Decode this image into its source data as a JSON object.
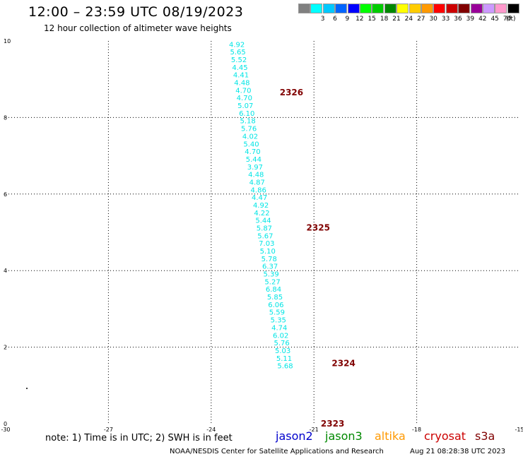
{
  "header": {
    "title": "12:00 – 23:59 UTC 08/19/2023",
    "subtitle": "12 hour collection of altimeter wave heights"
  },
  "color_scale": {
    "unit": "(ft)",
    "entries": [
      {
        "label": "",
        "color": "#808080"
      },
      {
        "label": "3",
        "color": "#00ffff"
      },
      {
        "label": "6",
        "color": "#00c8ff"
      },
      {
        "label": "9",
        "color": "#0064ff"
      },
      {
        "label": "12",
        "color": "#0000ff"
      },
      {
        "label": "15",
        "color": "#00ff00"
      },
      {
        "label": "18",
        "color": "#00cc00"
      },
      {
        "label": "21",
        "color": "#008800"
      },
      {
        "label": "24",
        "color": "#ffff00"
      },
      {
        "label": "27",
        "color": "#ffcc00"
      },
      {
        "label": "30",
        "color": "#ff9900"
      },
      {
        "label": "33",
        "color": "#ff0000"
      },
      {
        "label": "36",
        "color": "#cc0000"
      },
      {
        "label": "39",
        "color": "#800000"
      },
      {
        "label": "42",
        "color": "#990099"
      },
      {
        "label": "45",
        "color": "#cc99ff"
      },
      {
        "label": "70",
        "color": "#ff99cc"
      },
      {
        "label": "",
        "color": "#000000"
      }
    ]
  },
  "footer": {
    "note": "note:  1) Time is in UTC;  2) SWH is in feet",
    "satellites": [
      {
        "name": "jason2",
        "color": "#0000cc"
      },
      {
        "name": "jason3",
        "color": "#008800"
      },
      {
        "name": "altika",
        "color": "#ff9900"
      },
      {
        "name": "cryosat",
        "color": "#cc0000"
      },
      {
        "name": "s3a",
        "color": "#800000"
      }
    ],
    "credit": "NOAA/NESDIS Center for Satellite Applications and Research",
    "timestamp": "Aug 21 08:28:38 UTC 2023"
  },
  "chart_data": {
    "type": "scatter",
    "title": "12:00 – 23:59 UTC 08/19/2023",
    "subtitle": "12 hour collection of altimeter wave heights",
    "xlabel": "",
    "ylabel": "",
    "xlim": [
      -30,
      -15
    ],
    "ylim": [
      0,
      10
    ],
    "x_ticks": [
      "-30",
      "-27",
      "-24",
      "-21",
      "-18",
      "-15"
    ],
    "y_ticks": [
      "0",
      "2",
      "4",
      "6",
      "8",
      "10"
    ],
    "grid": true,
    "color_hint": "#00e5e5",
    "points": [
      {
        "x": -23.25,
        "y": 9.92,
        "swh": "4.92"
      },
      {
        "x": -23.22,
        "y": 9.72,
        "swh": "5.65"
      },
      {
        "x": -23.19,
        "y": 9.52,
        "swh": "5.52"
      },
      {
        "x": -23.16,
        "y": 9.32,
        "swh": "4.45"
      },
      {
        "x": -23.13,
        "y": 9.12,
        "swh": "4.41"
      },
      {
        "x": -23.1,
        "y": 8.92,
        "swh": "4.48"
      },
      {
        "x": -23.06,
        "y": 8.72,
        "swh": "4.70"
      },
      {
        "x": -23.03,
        "y": 8.52,
        "swh": "4.70"
      },
      {
        "x": -23.0,
        "y": 8.32,
        "swh": "5.07"
      },
      {
        "x": -22.96,
        "y": 8.12,
        "swh": "6.10"
      },
      {
        "x": -22.93,
        "y": 7.92,
        "swh": "5.18"
      },
      {
        "x": -22.9,
        "y": 7.72,
        "swh": "5.76"
      },
      {
        "x": -22.86,
        "y": 7.52,
        "swh": "4.02"
      },
      {
        "x": -22.83,
        "y": 7.32,
        "swh": "5.40"
      },
      {
        "x": -22.79,
        "y": 7.12,
        "swh": "4.70"
      },
      {
        "x": -22.76,
        "y": 6.92,
        "swh": "5.44"
      },
      {
        "x": -22.72,
        "y": 6.72,
        "swh": "3.97"
      },
      {
        "x": -22.69,
        "y": 6.52,
        "swh": "4.48"
      },
      {
        "x": -22.66,
        "y": 6.32,
        "swh": "4.87"
      },
      {
        "x": -22.62,
        "y": 6.12,
        "swh": "4.86"
      },
      {
        "x": -22.59,
        "y": 5.92,
        "swh": "4.47"
      },
      {
        "x": -22.55,
        "y": 5.72,
        "swh": "4.92"
      },
      {
        "x": -22.52,
        "y": 5.52,
        "swh": "4.22"
      },
      {
        "x": -22.48,
        "y": 5.32,
        "swh": "5.44"
      },
      {
        "x": -22.45,
        "y": 5.12,
        "swh": "5.87"
      },
      {
        "x": -22.42,
        "y": 4.92,
        "swh": "5.67"
      },
      {
        "x": -22.38,
        "y": 4.72,
        "swh": "7.03"
      },
      {
        "x": -22.35,
        "y": 4.52,
        "swh": "5.10"
      },
      {
        "x": -22.31,
        "y": 4.32,
        "swh": "5.78"
      },
      {
        "x": -22.28,
        "y": 4.12,
        "swh": "6.37"
      },
      {
        "x": -22.25,
        "y": 3.92,
        "swh": "5.39"
      },
      {
        "x": -22.21,
        "y": 3.72,
        "swh": "5.27"
      },
      {
        "x": -22.18,
        "y": 3.52,
        "swh": "6.84"
      },
      {
        "x": -22.14,
        "y": 3.32,
        "swh": "5.85"
      },
      {
        "x": -22.11,
        "y": 3.12,
        "swh": "6.06"
      },
      {
        "x": -22.08,
        "y": 2.92,
        "swh": "5.59"
      },
      {
        "x": -22.04,
        "y": 2.72,
        "swh": "5.35"
      },
      {
        "x": -22.01,
        "y": 2.52,
        "swh": "4.74"
      },
      {
        "x": -21.97,
        "y": 2.32,
        "swh": "6.02"
      },
      {
        "x": -21.94,
        "y": 2.12,
        "swh": "5.76"
      },
      {
        "x": -21.91,
        "y": 1.92,
        "swh": "5.03"
      },
      {
        "x": -21.87,
        "y": 1.72,
        "swh": "5.11"
      },
      {
        "x": -21.84,
        "y": 1.52,
        "swh": "5.68"
      }
    ],
    "annotations": [
      {
        "text": "2326",
        "x": -22.0,
        "y": 8.65
      },
      {
        "text": "2325",
        "x": -21.22,
        "y": 5.12
      },
      {
        "text": "2324",
        "x": -20.48,
        "y": 1.58
      },
      {
        "text": "2323",
        "x": -20.8,
        "y": 0.0
      }
    ]
  }
}
